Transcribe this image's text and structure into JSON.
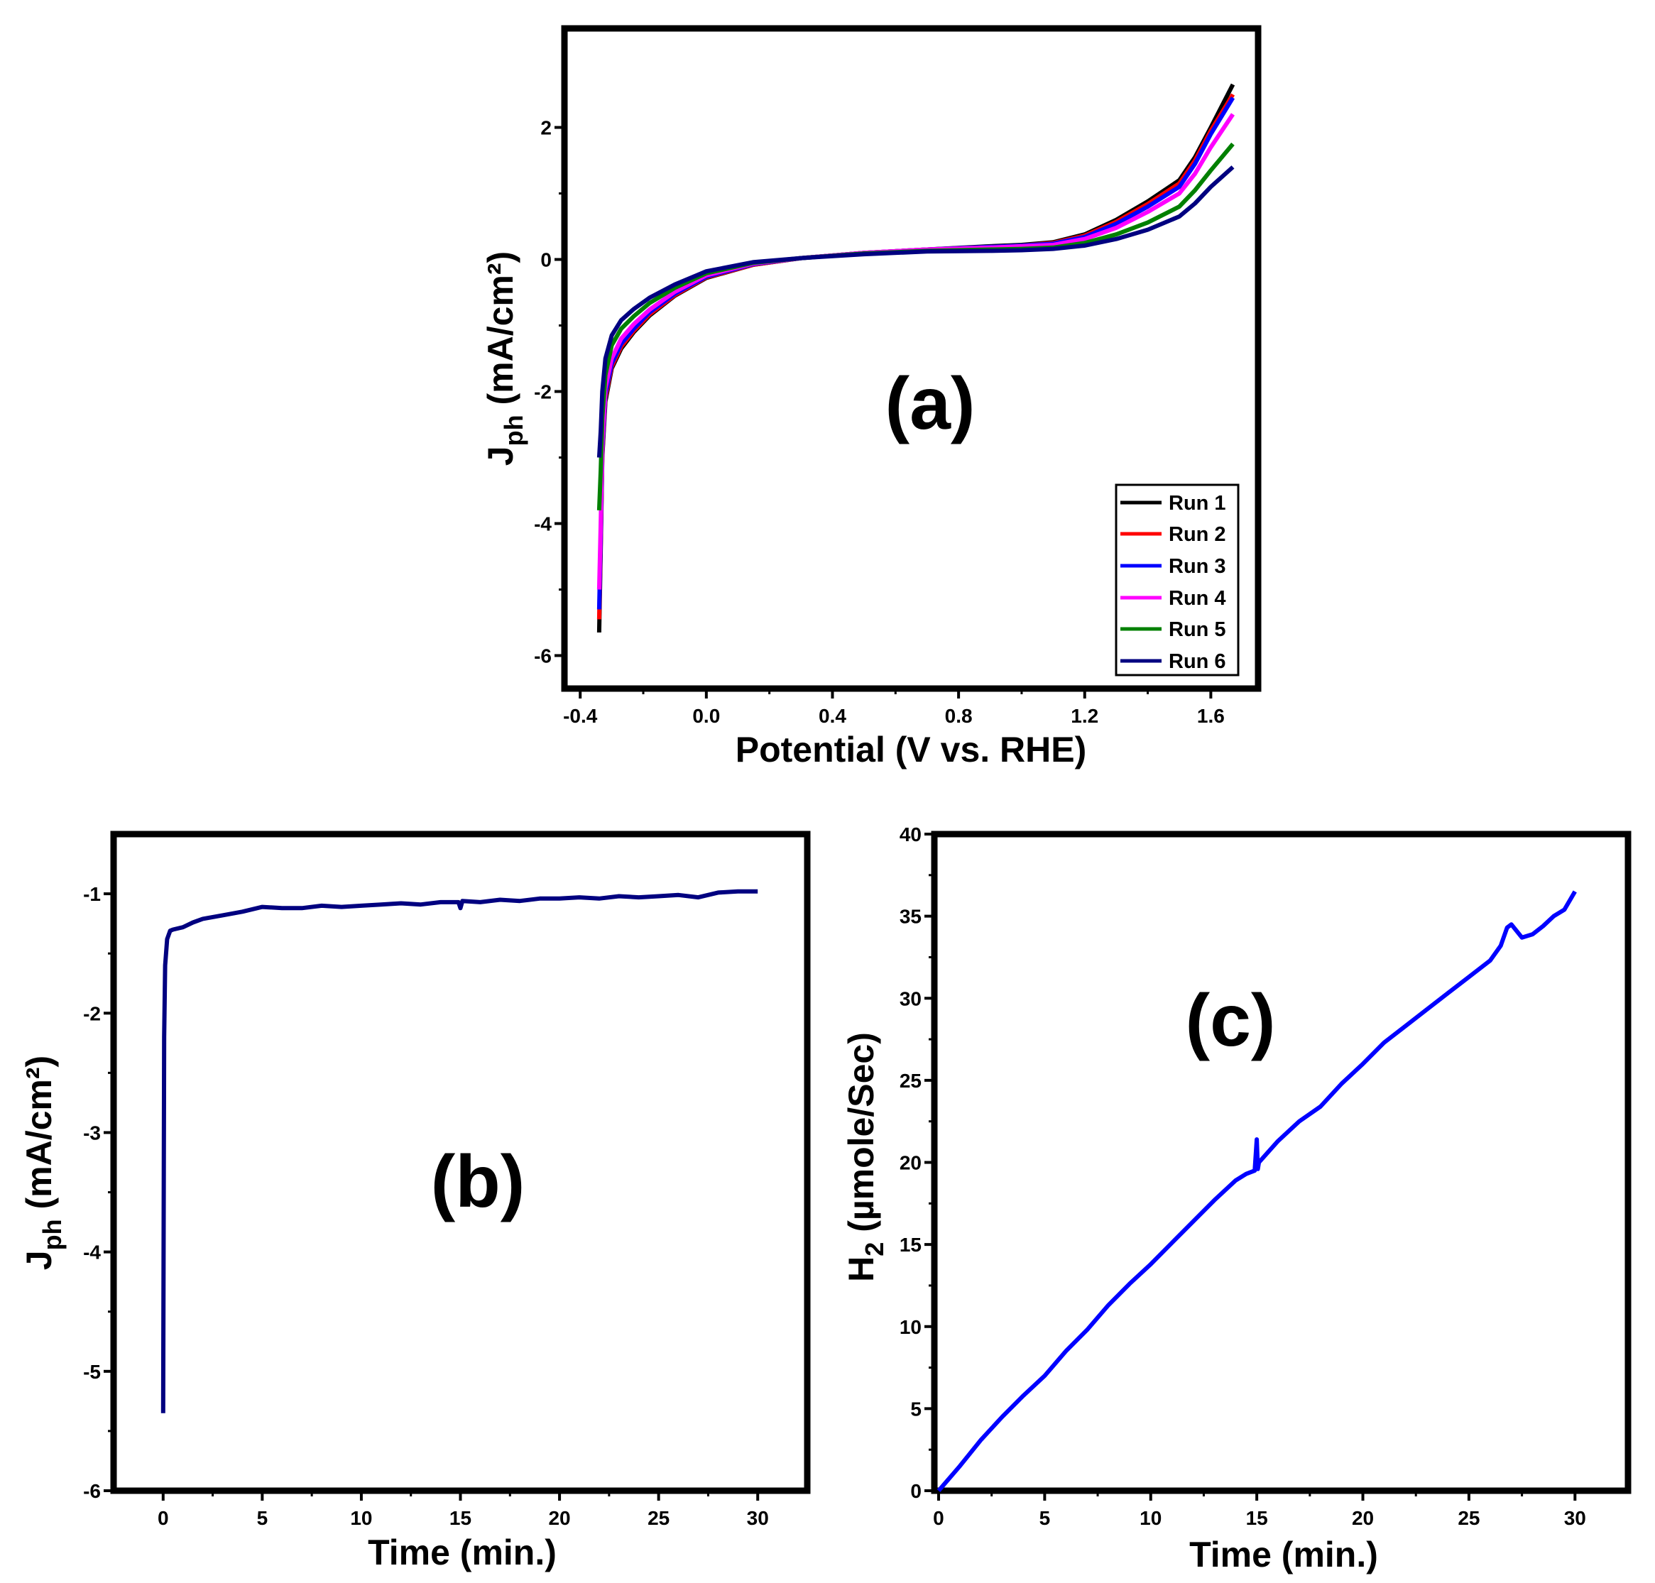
{
  "colors": {
    "run1": "#000000",
    "run2": "#ff0000",
    "run3": "#0000ff",
    "run4": "#ff00ff",
    "run5": "#008000",
    "run6": "#000080",
    "panel_b_line": "#000080",
    "panel_c_line": "#0000ff"
  },
  "chart_data": [
    {
      "panel": "a",
      "type": "line",
      "panel_label": "(a)",
      "xlabel": "Potential (V vs. RHE)",
      "ylabel_main": "J",
      "ylabel_sub": "ph",
      "ylabel_rest": " (mA/cm²)",
      "xlim": [
        -0.45,
        1.75
      ],
      "ylim": [
        -6.5,
        3.5
      ],
      "xticks": [
        -0.4,
        0.0,
        0.4,
        0.8,
        1.2,
        1.6
      ],
      "xtick_labels": [
        "-0.4",
        "0.0",
        "0.4",
        "0.8",
        "1.2",
        "1.6"
      ],
      "yticks": [
        -6,
        -4,
        -2,
        0,
        2
      ],
      "ytick_labels": [
        "-6",
        "-4",
        "-2",
        "0",
        "2"
      ],
      "legend_position": "bottom-right",
      "x": [
        -0.34,
        -0.335,
        -0.33,
        -0.32,
        -0.3,
        -0.27,
        -0.23,
        -0.18,
        -0.1,
        0.0,
        0.15,
        0.3,
        0.5,
        0.7,
        0.9,
        1.0,
        1.1,
        1.2,
        1.3,
        1.4,
        1.5,
        1.55,
        1.6,
        1.67
      ],
      "series": [
        {
          "name": "Run 1",
          "color_key": "run1",
          "values": [
            -5.65,
            -4.4,
            -3.0,
            -2.15,
            -1.65,
            -1.35,
            -1.1,
            -0.85,
            -0.55,
            -0.28,
            -0.08,
            0.02,
            0.1,
            0.15,
            0.2,
            0.22,
            0.26,
            0.38,
            0.6,
            0.88,
            1.2,
            1.55,
            2.0,
            2.65
          ]
        },
        {
          "name": "Run 2",
          "color_key": "run2",
          "values": [
            -5.45,
            -4.3,
            -2.95,
            -2.1,
            -1.62,
            -1.32,
            -1.08,
            -0.83,
            -0.54,
            -0.27,
            -0.08,
            0.02,
            0.1,
            0.15,
            0.19,
            0.21,
            0.25,
            0.36,
            0.57,
            0.84,
            1.15,
            1.5,
            1.95,
            2.5
          ]
        },
        {
          "name": "Run 3",
          "color_key": "run3",
          "values": [
            -5.3,
            -4.2,
            -2.9,
            -2.05,
            -1.58,
            -1.28,
            -1.05,
            -0.8,
            -0.52,
            -0.26,
            -0.07,
            0.02,
            0.1,
            0.15,
            0.19,
            0.21,
            0.24,
            0.34,
            0.54,
            0.8,
            1.1,
            1.45,
            1.9,
            2.45
          ]
        },
        {
          "name": "Run 4",
          "color_key": "run4",
          "values": [
            -5.0,
            -4.0,
            -2.8,
            -1.95,
            -1.5,
            -1.2,
            -0.98,
            -0.76,
            -0.49,
            -0.24,
            -0.06,
            0.02,
            0.1,
            0.15,
            0.18,
            0.2,
            0.22,
            0.31,
            0.48,
            0.72,
            1.0,
            1.3,
            1.7,
            2.2
          ]
        },
        {
          "name": "Run 5",
          "color_key": "run5",
          "values": [
            -3.8,
            -3.2,
            -2.4,
            -1.75,
            -1.3,
            -1.05,
            -0.86,
            -0.66,
            -0.43,
            -0.21,
            -0.05,
            0.02,
            0.09,
            0.13,
            0.15,
            0.16,
            0.18,
            0.25,
            0.38,
            0.56,
            0.8,
            1.05,
            1.35,
            1.75
          ]
        },
        {
          "name": "Run 6",
          "color_key": "run6",
          "values": [
            -3.0,
            -2.6,
            -2.0,
            -1.5,
            -1.15,
            -0.92,
            -0.75,
            -0.58,
            -0.38,
            -0.18,
            -0.04,
            0.02,
            0.08,
            0.12,
            0.13,
            0.14,
            0.16,
            0.21,
            0.31,
            0.45,
            0.65,
            0.85,
            1.1,
            1.4
          ]
        }
      ]
    },
    {
      "panel": "b",
      "type": "line",
      "panel_label": "(b)",
      "xlabel": "Time (min.)",
      "ylabel_main": "J",
      "ylabel_sub": "ph",
      "ylabel_rest": " (mA/cm²)",
      "xlim": [
        -2.5,
        32.5
      ],
      "ylim": [
        -6,
        -0.5
      ],
      "xticks": [
        0,
        5,
        10,
        15,
        20,
        25,
        30
      ],
      "xtick_labels": [
        "0",
        "5",
        "10",
        "15",
        "20",
        "25",
        "30"
      ],
      "yticks": [
        -6,
        -5,
        -4,
        -3,
        -2,
        -1
      ],
      "ytick_labels": [
        "-6",
        "-5",
        "-4",
        "-3",
        "-2",
        "-1"
      ],
      "color_key": "panel_b_line",
      "x": [
        0,
        0.05,
        0.1,
        0.2,
        0.35,
        0.5,
        1,
        1.5,
        2,
        3,
        4,
        5,
        6,
        7,
        8,
        9,
        10,
        11,
        12,
        13,
        14,
        14.9,
        15.0,
        15.1,
        16,
        17,
        18,
        19,
        20,
        21,
        22,
        23,
        24,
        25,
        26,
        27,
        28,
        29,
        30
      ],
      "values": [
        -5.35,
        -2.2,
        -1.6,
        -1.38,
        -1.31,
        -1.3,
        -1.28,
        -1.24,
        -1.21,
        -1.18,
        -1.15,
        -1.11,
        -1.12,
        -1.12,
        -1.1,
        -1.11,
        -1.1,
        -1.09,
        -1.08,
        -1.09,
        -1.07,
        -1.07,
        -1.12,
        -1.06,
        -1.07,
        -1.05,
        -1.06,
        -1.04,
        -1.04,
        -1.03,
        -1.04,
        -1.02,
        -1.03,
        -1.02,
        -1.01,
        -1.03,
        -0.99,
        -0.98,
        -0.98
      ]
    },
    {
      "panel": "c",
      "type": "line",
      "panel_label": "(c)",
      "xlabel": "Time (min.)",
      "ylabel_main": "H",
      "ylabel_sub": "2",
      "ylabel_rest": " (µmole/Sec)",
      "xlim": [
        -0.2,
        32.5
      ],
      "ylim": [
        0,
        40
      ],
      "xticks": [
        0,
        5,
        10,
        15,
        20,
        25,
        30
      ],
      "xtick_labels": [
        "0",
        "5",
        "10",
        "15",
        "20",
        "25",
        "30"
      ],
      "yticks": [
        0,
        5,
        10,
        15,
        20,
        25,
        30,
        35,
        40
      ],
      "ytick_labels": [
        "0",
        "5",
        "10",
        "15",
        "20",
        "25",
        "30",
        "35",
        "40"
      ],
      "color_key": "panel_c_line",
      "x": [
        0,
        1,
        2,
        3,
        4,
        5,
        6,
        7,
        8,
        9,
        10,
        11,
        12,
        13,
        14,
        14.5,
        14.9,
        15.0,
        15.05,
        15.1,
        16,
        17,
        18,
        19,
        20,
        21,
        22,
        23,
        24,
        25,
        26,
        26.5,
        26.8,
        27.0,
        27.5,
        28,
        28.5,
        29,
        29.5,
        30
      ],
      "values": [
        0,
        1.5,
        3.1,
        4.5,
        5.8,
        7.0,
        8.5,
        9.8,
        11.3,
        12.6,
        13.8,
        15.1,
        16.4,
        17.7,
        18.9,
        19.3,
        19.5,
        21.4,
        19.6,
        20.0,
        21.3,
        22.5,
        23.4,
        24.8,
        26.0,
        27.3,
        28.3,
        29.3,
        30.3,
        31.3,
        32.3,
        33.2,
        34.3,
        34.5,
        33.7,
        33.9,
        34.4,
        35.0,
        35.4,
        36.5
      ]
    }
  ]
}
